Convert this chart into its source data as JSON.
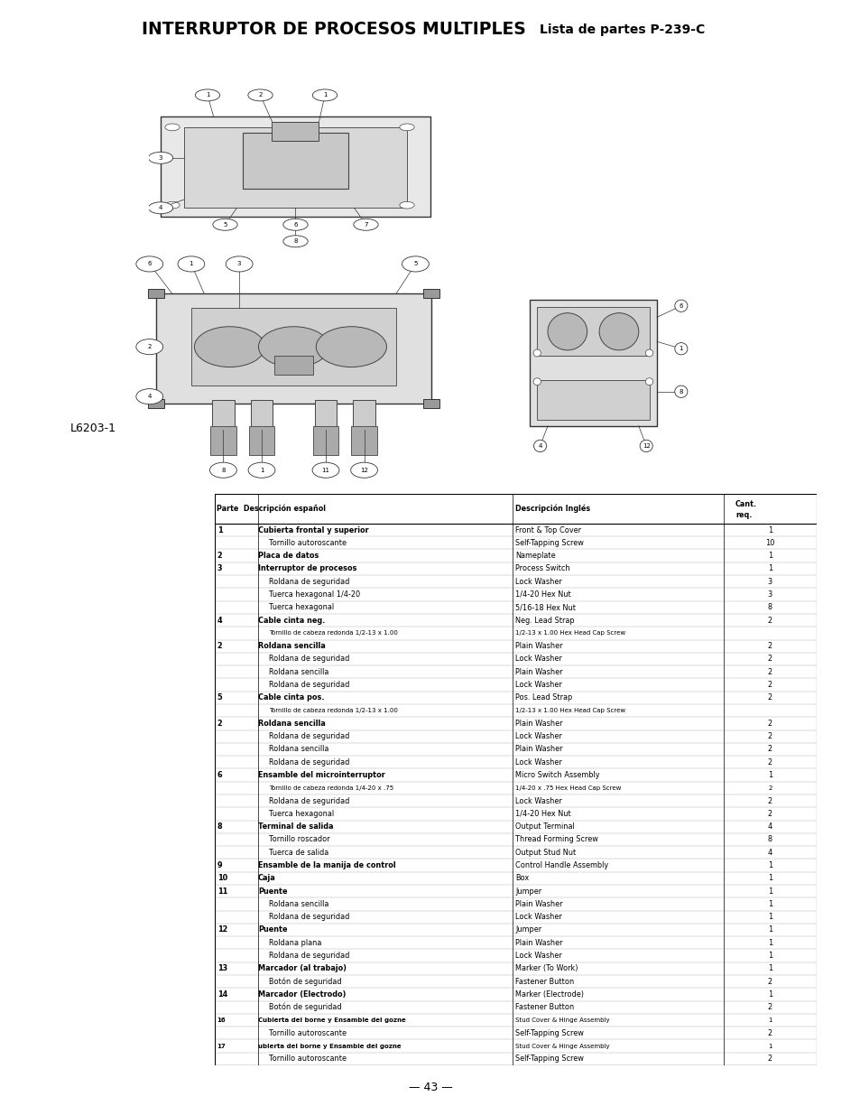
{
  "title": "INTERRUPTOR DE PROCESOS MULTIPLES",
  "subtitle": "Lista de partes P-239-C",
  "page_number": "— 43 —",
  "label_left": "L6203-1",
  "background_color": "#ffffff",
  "table_rows": [
    [
      "1",
      "Cubierta frontal y superior",
      "Front & Top Cover",
      "1"
    ],
    [
      "",
      "Tornillo autoroscante",
      "Self-Tapping Screw",
      "10"
    ],
    [
      "2",
      "Placa de datos",
      "Nameplate",
      "1"
    ],
    [
      "3",
      "Interruptor de procesos",
      "Process Switch",
      "1"
    ],
    [
      "",
      "Roldana de seguridad",
      "Lock Washer",
      "3"
    ],
    [
      "",
      "Tuerca hexagonal 1/4-20",
      "1/4-20 Hex Nut",
      "3"
    ],
    [
      "",
      "Tuerca hexagonal",
      "5/16-18 Hex Nut",
      "8"
    ],
    [
      "4",
      "Cable cinta neg.",
      "Neg. Lead Strap",
      "2"
    ],
    [
      "",
      "Tornillo de cabeza redonda 1/2-13 x 1.00",
      "1/2-13 x 1.00 Hex Head Cap Screw",
      ""
    ],
    [
      "2",
      "Roldana sencilla",
      "Plain Washer",
      "2"
    ],
    [
      "",
      "Roldana de seguridad",
      "Lock Washer",
      "2"
    ],
    [
      "",
      "Roldana sencilla",
      "Plain Washer",
      "2"
    ],
    [
      "",
      "Roldana de seguridad",
      "Lock Washer",
      "2"
    ],
    [
      "5",
      "Cable cinta pos.",
      "Pos. Lead Strap",
      "2"
    ],
    [
      "",
      "Tornillo de cabeza redonda 1/2-13 x 1.00",
      "1/2-13 x 1.00 Hex Head Cap Screw",
      ""
    ],
    [
      "2",
      "Roldana sencilla",
      "Plain Washer",
      "2"
    ],
    [
      "",
      "Roldana de seguridad",
      "Lock Washer",
      "2"
    ],
    [
      "",
      "Roldana sencilla",
      "Plain Washer",
      "2"
    ],
    [
      "",
      "Roldana de seguridad",
      "Lock Washer",
      "2"
    ],
    [
      "6",
      "Ensamble del microinterruptor",
      "Micro Switch Assembly",
      "1"
    ],
    [
      "",
      "Tornillo de cabeza redonda 1/4-20 x .75",
      "1/4-20 x .75 Hex Head Cap Screw",
      "2"
    ],
    [
      "",
      "Roldana de seguridad",
      "Lock Washer",
      "2"
    ],
    [
      "",
      "Tuerca hexagonal",
      "1/4-20 Hex Nut",
      "2"
    ],
    [
      "8",
      "Terminal de salida",
      "Output Terminal",
      "4"
    ],
    [
      "",
      "Tornillo roscador",
      "Thread Forming Screw",
      "8"
    ],
    [
      "",
      "Tuerca de salida",
      "Output Stud Nut",
      "4"
    ],
    [
      "9",
      "Ensamble de la manija de control",
      "Control Handle Assembly",
      "1"
    ],
    [
      "10",
      "Caja",
      "Box",
      "1"
    ],
    [
      "11",
      "Puente",
      "Jumper",
      "1"
    ],
    [
      "",
      "Roldana sencilla",
      "Plain Washer",
      "1"
    ],
    [
      "",
      "Roldana de seguridad",
      "Lock Washer",
      "1"
    ],
    [
      "12",
      "Puente",
      "Jumper",
      "1"
    ],
    [
      "",
      "Roldana plana",
      "Plain Washer",
      "1"
    ],
    [
      "",
      "Roldana de seguridad",
      "Lock Washer",
      "1"
    ],
    [
      "13",
      "Marcador (al trabajo)",
      "Marker (To Work)",
      "1"
    ],
    [
      "",
      "Botón de seguridad",
      "Fastener Button",
      "2"
    ],
    [
      "14",
      "Marcador (Electrodo)",
      "Marker (Electrode)",
      "1"
    ],
    [
      "",
      "Botón de seguridad",
      "Fastener Button",
      "2"
    ],
    [
      "16",
      "Cubierta del borne y Ensamble del gozne",
      "Stud Cover & Hinge Assembly",
      "1"
    ],
    [
      "",
      "Tornillo autoroscante",
      "Self-Tapping Screw",
      "2"
    ],
    [
      "17",
      "ubierta del borne y Ensamble del gozne",
      "Stud Cover & Hinge Assembly",
      "1"
    ],
    [
      "",
      "Tornillo autoroscante",
      "Self-Tapping Screw",
      "2"
    ]
  ]
}
